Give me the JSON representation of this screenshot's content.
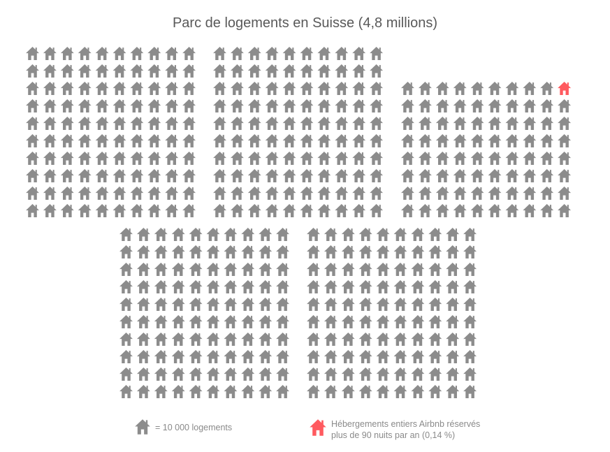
{
  "title": "Parc de logements en Suisse (4,8 millions)",
  "chart_data": {
    "type": "pictogram",
    "title": "Parc de logements en Suisse (4,8 millions)",
    "unit_value": 10000,
    "unit_label": "= 10 000 logements",
    "icon": "house-icon",
    "blocks": [
      {
        "rows": 10,
        "cols": 10,
        "count": 100
      },
      {
        "rows": 10,
        "cols": 10,
        "count": 100
      },
      {
        "rows": 8,
        "cols": 10,
        "count": 80,
        "highlighted": 1
      },
      {
        "rows": 10,
        "cols": 10,
        "count": 100
      },
      {
        "rows": 10,
        "cols": 10,
        "count": 100
      }
    ],
    "total_icons": 480,
    "highlighted_icons": 1,
    "highlight_label_line1": "Hébergements entiers Airbnb réservés",
    "highlight_label_line2": "plus de 90 nuits par an (0,14 %)",
    "colors": {
      "base": "#8c8c8c",
      "highlight": "#ff5a5f"
    }
  },
  "legend": {
    "unit_label": "= 10 000 logements",
    "highlight_line1": "Hébergements entiers Airbnb réservés",
    "highlight_line2": "plus de 90 nuits par an (0,14 %)"
  }
}
